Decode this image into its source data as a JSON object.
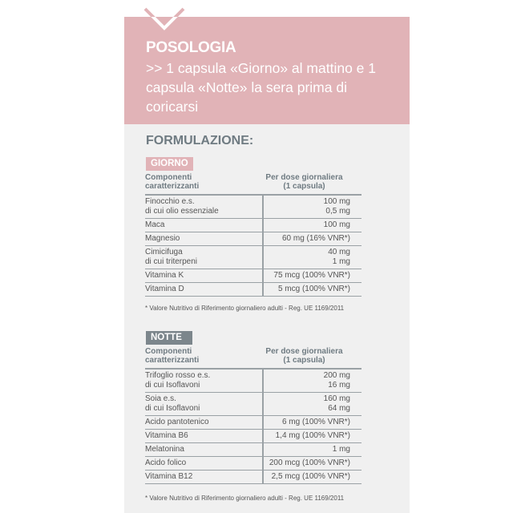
{
  "colors": {
    "accent_pink": "#e1b3b7",
    "heading_gray": "#6f7b82",
    "badge_gray": "#7c868c",
    "panel_bg": "#f0f0f0"
  },
  "posologia": {
    "title": "POSOLOGIA",
    "text": ">> 1 capsula  «Giorno» al mattino e 1 capsula «Notte» la sera prima di coricarsi"
  },
  "formulazione": {
    "title": "FORMULAZIONE:"
  },
  "giorno": {
    "badge": "GIORNO",
    "col1": "Componenti\ncaratterizzanti",
    "col2": "Per dose giornaliera\n(1 capsula)",
    "rows": [
      {
        "name": "Finocchio e.s.\ndi cui olio essenziale",
        "value": "100 mg\n0,5 mg"
      },
      {
        "name": "Maca",
        "value": "100 mg"
      },
      {
        "name": "Magnesio",
        "value": "60 mg (16% VNR*)"
      },
      {
        "name": "Cimicifuga\ndi cui triterpeni",
        "value": "40 mg\n1 mg"
      },
      {
        "name": "Vitamina K",
        "value": "75 mcg (100% VNR*)"
      },
      {
        "name": "Vitamina D",
        "value": "5 mcg (100% VNR*)"
      }
    ],
    "footnote": "* Valore Nutritivo di Riferimento giornaliero adulti - Reg. UE 1169/2011"
  },
  "notte": {
    "badge": "NOTTE",
    "col1": "Componenti\ncaratterizzanti",
    "col2": "Per dose giornaliera\n(1 capsula)",
    "rows": [
      {
        "name": "Trifoglio rosso e.s.\ndi cui Isoflavoni",
        "value": "200 mg\n16 mg"
      },
      {
        "name": "Soia e.s.\ndi cui Isoflavoni",
        "value": "160 mg\n64 mg"
      },
      {
        "name": "Acido pantotenico",
        "value": "6 mg (100% VNR*)"
      },
      {
        "name": "Vitamina B6",
        "value": "1,4 mg (100% VNR*)"
      },
      {
        "name": "Melatonina",
        "value": "1 mg"
      },
      {
        "name": "Acido folico",
        "value": "200 mcg (100% VNR*)"
      },
      {
        "name": "Vitamina B12",
        "value": "2,5 mcg (100% VNR*)"
      }
    ],
    "footnote": "* Valore Nutritivo di Riferimento giornaliero adulti - Reg. UE 1169/2011"
  }
}
